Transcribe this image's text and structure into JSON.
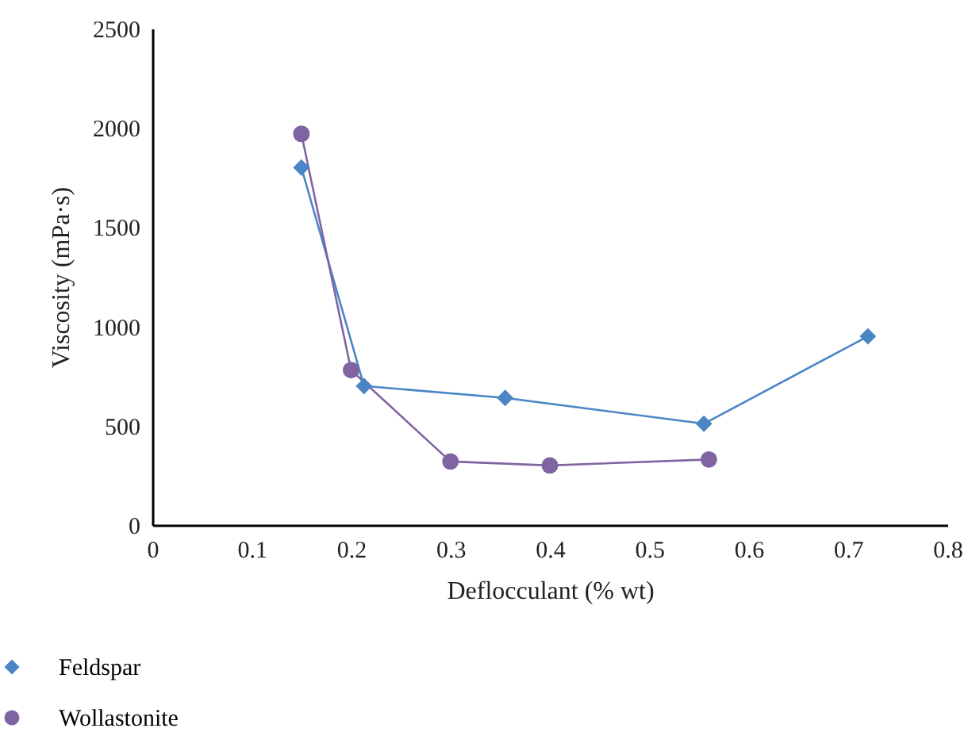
{
  "chart_data": {
    "type": "line",
    "xlabel": "Deflocculant (% wt)",
    "ylabel": "Viscosity (mPa·s)",
    "xlim": [
      0,
      0.8
    ],
    "xticks": [
      0,
      0.1,
      0.2,
      0.3,
      0.4,
      0.5,
      0.6,
      0.7,
      0.8
    ],
    "ylim": [
      0,
      2500
    ],
    "yticks": [
      0,
      500,
      1000,
      1500,
      2000,
      2500
    ],
    "grid": false,
    "legend": "bottom",
    "line_style": "solid",
    "series": [
      {
        "name": "Feldspar",
        "color": "#4a86c6",
        "marker": "diamond",
        "x": [
          0.15,
          0.213,
          0.355,
          0.555,
          0.72
        ],
        "values": [
          1800,
          700,
          640,
          510,
          950
        ]
      },
      {
        "name": "Wollastonite",
        "color": "#8064a2",
        "marker": "circle",
        "x": [
          0.15,
          0.2,
          0.3,
          0.4,
          0.56
        ],
        "values": [
          1970,
          780,
          320,
          300,
          330
        ]
      }
    ]
  }
}
